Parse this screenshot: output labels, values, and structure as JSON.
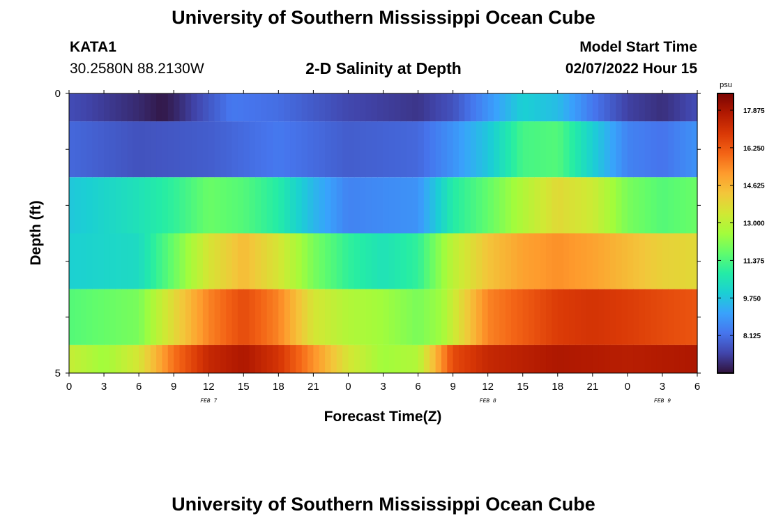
{
  "page": {
    "title": "University of Southern Mississippi Ocean Cube",
    "title_repeat": "University of Southern Mississippi Ocean Cube",
    "station_name": "KATA1",
    "station_coords": "30.2580N  88.2130W",
    "subtitle": "2-D Salinity at Depth",
    "model_label": "Model Start Time",
    "model_time": "02/07/2022 Hour 15"
  },
  "chart_data": {
    "type": "heatmap",
    "title": "2-D Salinity at Depth",
    "xlabel": "Forecast Time(Z)",
    "ylabel": "Depth (ft)",
    "colorbar_unit": "psu",
    "x_hours": [
      0,
      3,
      6,
      9,
      12,
      15,
      18,
      21,
      24,
      27,
      30,
      33,
      36,
      39,
      42,
      45,
      48,
      51,
      54
    ],
    "x_tick_labels": [
      "0",
      "3",
      "6",
      "9",
      "12",
      "15",
      "18",
      "21",
      "0",
      "3",
      "6",
      "9",
      "12",
      "15",
      "18",
      "21",
      "0",
      "3",
      "6"
    ],
    "date_labels": [
      {
        "label": "FEB 7",
        "hour": 12
      },
      {
        "label": "FEB 8",
        "hour": 36
      },
      {
        "label": "FEB 9",
        "hour": 51
      }
    ],
    "y_tick_values": [
      0,
      1,
      2,
      3,
      4,
      5
    ],
    "y_tick_labels": [
      {
        "value": 0,
        "label": "0"
      },
      {
        "value": 5,
        "label": "5"
      }
    ],
    "ylim": [
      0,
      5
    ],
    "xlim": [
      0,
      54
    ],
    "depth_layers": [
      {
        "top": 0,
        "bottom": 0.5
      },
      {
        "top": 0.5,
        "bottom": 1.5
      },
      {
        "top": 1.5,
        "bottom": 2.5
      },
      {
        "top": 2.5,
        "bottom": 3.5
      },
      {
        "top": 3.5,
        "bottom": 4.5
      },
      {
        "top": 4.5,
        "bottom": 5
      }
    ],
    "color_min": 6.5,
    "color_max": 18.6,
    "colorbar_ticks": [
      "8.125",
      "9.750",
      "11.375",
      "13.000",
      "14.625",
      "16.250",
      "17.875"
    ],
    "salinity_keyframes": [
      {
        "hours": [
          0,
          3,
          6,
          8,
          9,
          11,
          14,
          18,
          24,
          30,
          33,
          36,
          39,
          42,
          45,
          48,
          51,
          54
        ],
        "values": [
          7.5,
          7.2,
          6.9,
          6.6,
          6.8,
          7.4,
          8.3,
          8.1,
          7.4,
          7.1,
          7.6,
          8.8,
          10.0,
          9.6,
          8.3,
          7.3,
          7.0,
          7.5
        ]
      },
      {
        "hours": [
          0,
          6,
          12,
          18,
          24,
          30,
          33,
          36,
          39,
          42,
          45,
          48,
          51,
          54
        ],
        "values": [
          8.0,
          7.6,
          7.8,
          8.3,
          7.8,
          8.0,
          8.8,
          9.8,
          11.3,
          11.5,
          10.0,
          8.5,
          8.2,
          8.8
        ]
      },
      {
        "hours": [
          0,
          6,
          9,
          12,
          15,
          18,
          21,
          24,
          30,
          33,
          36,
          39,
          42,
          45,
          48,
          51,
          54
        ],
        "values": [
          9.8,
          10.5,
          11.0,
          11.8,
          11.5,
          10.8,
          9.5,
          8.5,
          8.8,
          10.8,
          11.7,
          12.8,
          13.8,
          13.3,
          12.0,
          11.5,
          11.8
        ]
      },
      {
        "hours": [
          0,
          6,
          9,
          12,
          15,
          18,
          21,
          24,
          27,
          30,
          33,
          36,
          39,
          42,
          45,
          48,
          51,
          54
        ],
        "values": [
          10.0,
          10.3,
          11.8,
          13.5,
          14.5,
          13.5,
          12.0,
          11.0,
          10.5,
          11.0,
          13.0,
          14.3,
          15.0,
          15.3,
          15.0,
          14.5,
          14.0,
          13.8
        ]
      },
      {
        "hours": [
          0,
          6,
          9,
          12,
          15,
          18,
          21,
          24,
          27,
          30,
          32,
          36,
          42,
          45,
          48,
          51,
          54
        ],
        "values": [
          11.5,
          12.0,
          13.8,
          15.5,
          16.5,
          15.5,
          13.5,
          12.8,
          12.5,
          12.0,
          12.5,
          15.5,
          16.8,
          17.0,
          16.8,
          16.5,
          16.3
        ]
      },
      {
        "hours": [
          0,
          3,
          6,
          9,
          12,
          15,
          18,
          21,
          24,
          27,
          30,
          33,
          36,
          42,
          48,
          54
        ],
        "values": [
          13.2,
          12.5,
          13.5,
          15.8,
          17.3,
          17.8,
          17.0,
          15.3,
          13.5,
          12.5,
          12.8,
          16.5,
          17.3,
          17.8,
          17.6,
          17.8
        ]
      }
    ]
  }
}
